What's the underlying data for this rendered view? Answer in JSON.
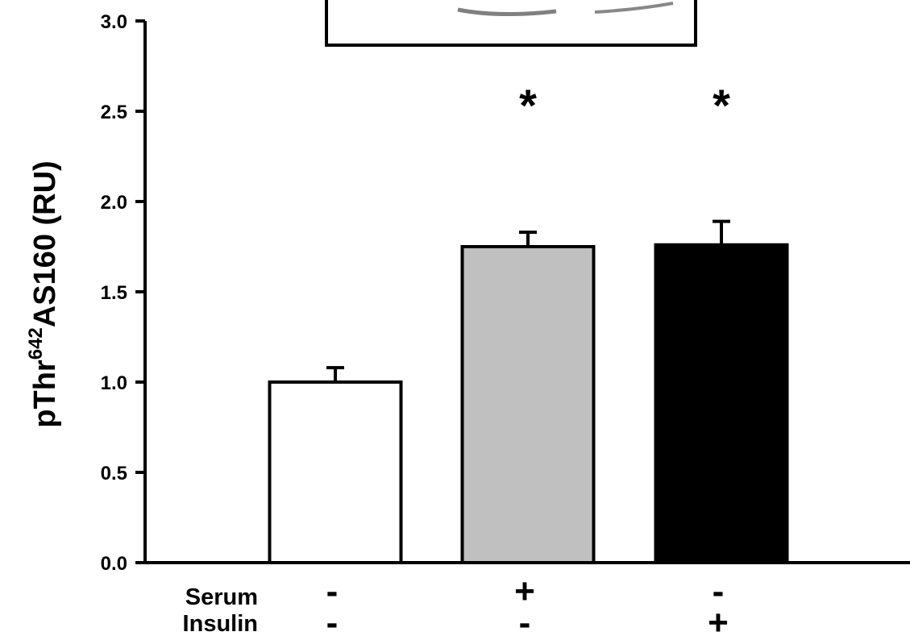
{
  "chart_data": {
    "type": "bar",
    "ylabel": {
      "prefix": "pThr",
      "superscript": "642",
      "suffix": "AS160 (RU)"
    },
    "ylim": [
      0,
      3.0
    ],
    "yticks": [
      "0.0",
      "0.5",
      "1.0",
      "1.5",
      "2.0",
      "2.5",
      "3.0"
    ],
    "bars": [
      {
        "value": 1.0,
        "error": 0.08,
        "color": "#ffffff",
        "serum": "-",
        "insulin": "-",
        "significance": ""
      },
      {
        "value": 1.75,
        "error": 0.08,
        "color": "#c0c0c0",
        "serum": "+",
        "insulin": "-",
        "significance": "*"
      },
      {
        "value": 1.76,
        "error": 0.13,
        "color": "#000000",
        "serum": "-",
        "insulin": "+",
        "significance": "*"
      }
    ],
    "conditions": {
      "serum": "Serum",
      "insulin": "Insulin"
    },
    "inset": {
      "type": "western-blot-image"
    },
    "grid": false,
    "legend": "none"
  }
}
